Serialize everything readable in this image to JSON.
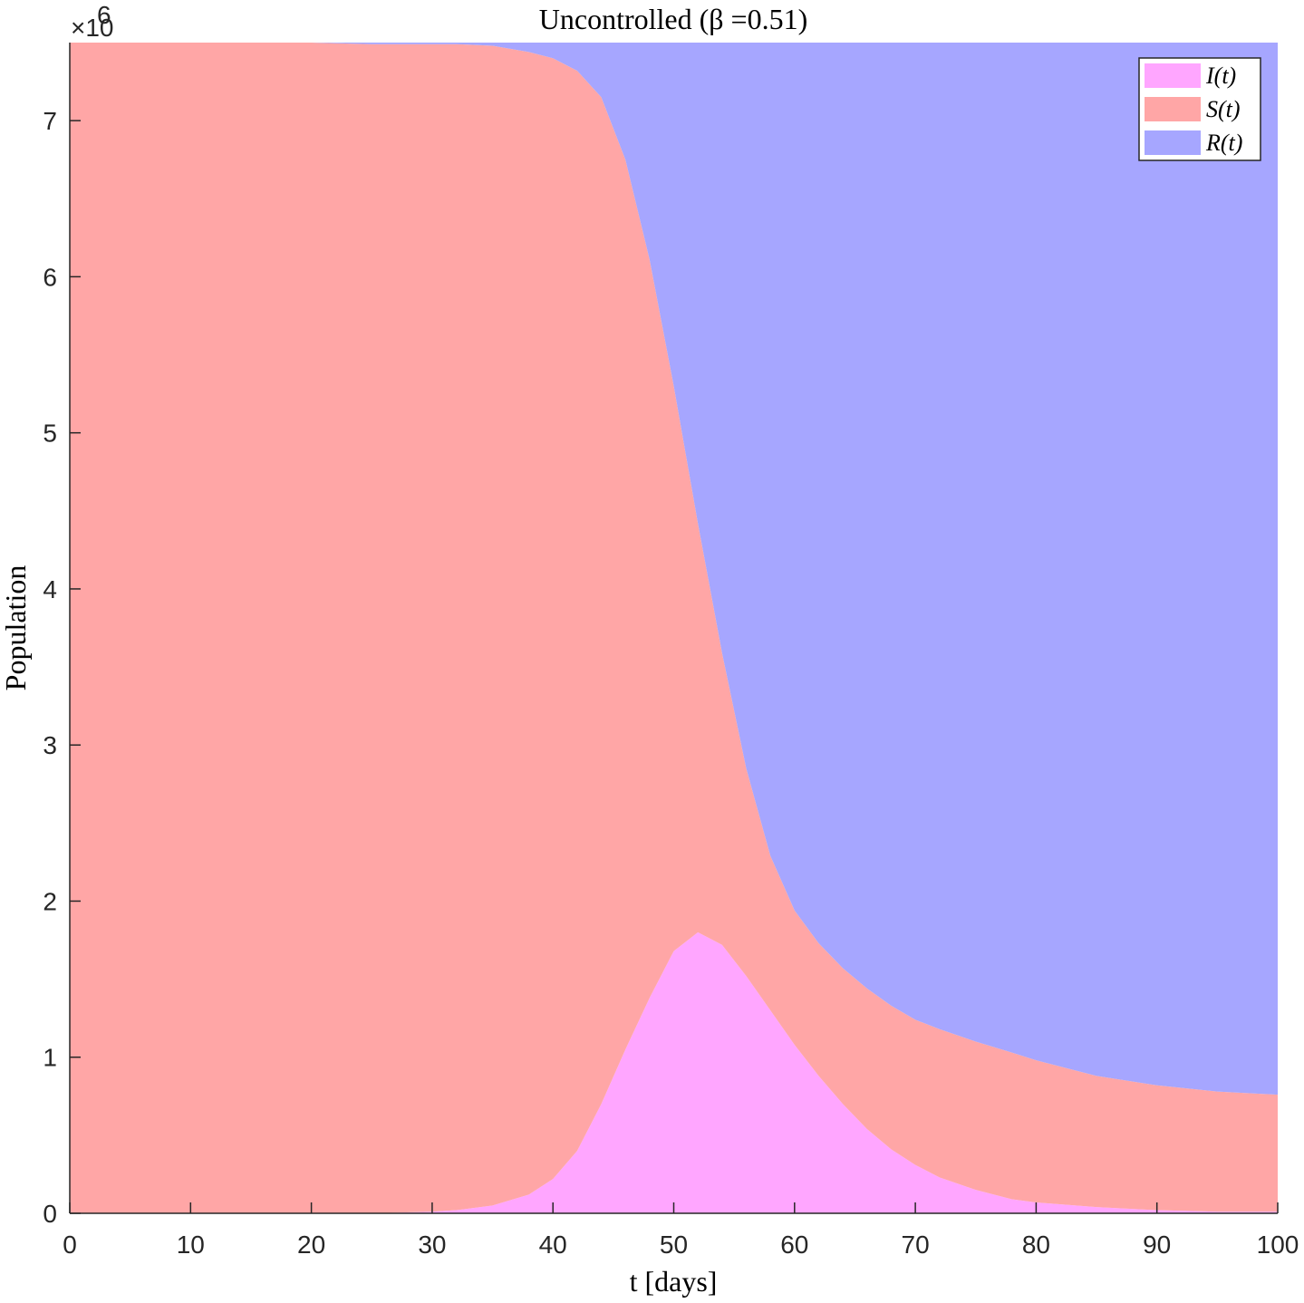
{
  "chart_data": {
    "type": "area",
    "stacked": true,
    "title": "Uncontrolled (β =0.51)",
    "xlabel": "t [days]",
    "ylabel": "Population",
    "y_exponent_label": "×10",
    "y_exponent_power": "6",
    "xlim": [
      0,
      100
    ],
    "ylim": [
      0,
      7.5
    ],
    "xticks": [
      "0",
      "10",
      "20",
      "30",
      "40",
      "50",
      "60",
      "70",
      "80",
      "90",
      "100"
    ],
    "yticks": [
      "0",
      "1",
      "2",
      "3",
      "4",
      "5",
      "6",
      "7"
    ],
    "grid": false,
    "legend_position": "top-right",
    "x": [
      0,
      10,
      20,
      25,
      30,
      32,
      35,
      38,
      40,
      42,
      44,
      46,
      48,
      50,
      52,
      54,
      56,
      58,
      60,
      62,
      64,
      66,
      68,
      70,
      72,
      75,
      78,
      80,
      85,
      90,
      95,
      100
    ],
    "series": [
      {
        "name": "I(t)",
        "color": "#ffa6ff",
        "values": [
          0,
          0,
          0,
          0,
          0.01,
          0.02,
          0.05,
          0.12,
          0.22,
          0.4,
          0.7,
          1.05,
          1.38,
          1.68,
          1.8,
          1.72,
          1.52,
          1.3,
          1.08,
          0.88,
          0.7,
          0.54,
          0.41,
          0.31,
          0.23,
          0.15,
          0.09,
          0.07,
          0.04,
          0.02,
          0.01,
          0.01
        ]
      },
      {
        "name": "S(t)",
        "color": "#ffa6a6",
        "values": [
          7.5,
          7.5,
          7.5,
          7.49,
          7.48,
          7.47,
          7.43,
          7.32,
          7.18,
          6.92,
          6.45,
          5.7,
          4.73,
          3.62,
          2.62,
          1.87,
          1.33,
          0.99,
          0.86,
          0.85,
          0.87,
          0.9,
          0.92,
          0.93,
          0.95,
          0.95,
          0.94,
          0.91,
          0.84,
          0.8,
          0.77,
          0.75
        ]
      },
      {
        "name": "R(t)",
        "color": "#a6a6ff",
        "values": [
          0,
          0,
          0,
          0.01,
          0.01,
          0.01,
          0.02,
          0.06,
          0.1,
          0.18,
          0.35,
          0.75,
          1.39,
          2.2,
          3.08,
          3.91,
          4.65,
          5.21,
          5.56,
          5.77,
          5.93,
          6.06,
          6.17,
          6.26,
          6.32,
          6.4,
          6.47,
          6.52,
          6.62,
          6.68,
          6.72,
          6.74
        ]
      }
    ]
  }
}
